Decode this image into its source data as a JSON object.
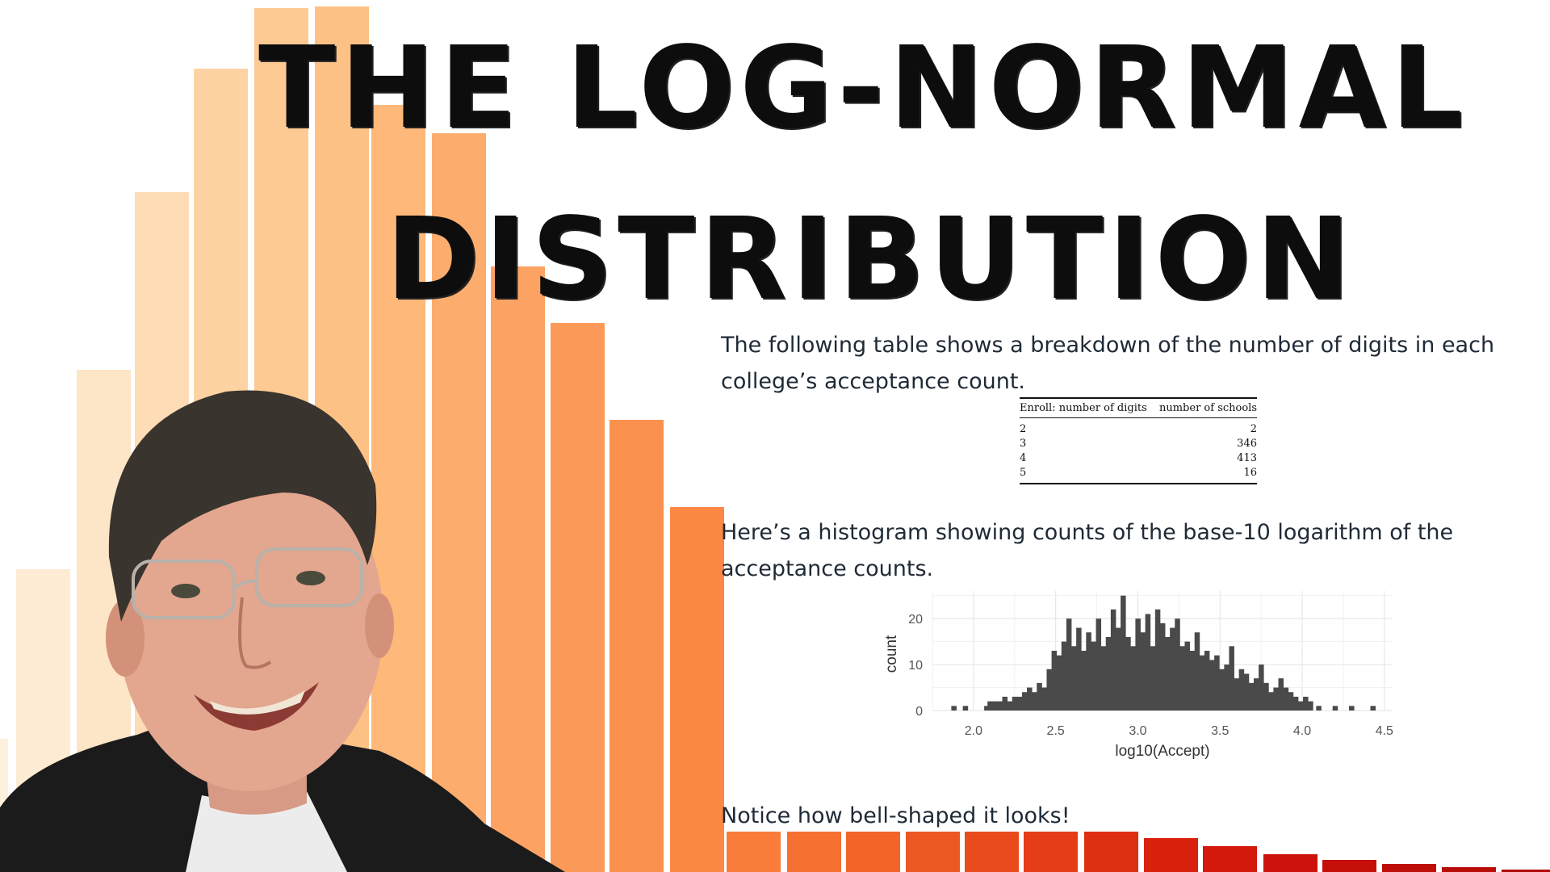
{
  "title": {
    "line1": "THE LOG-NORMAL",
    "line2": "DISTRIBUTION"
  },
  "paragraphs": {
    "intro": "The following table shows a breakdown of the number of digits in each college’s acceptance count.",
    "histogram_intro": "Here’s a histogram showing counts of the base-10 logarithm of the acceptance counts.",
    "closing": "Notice how bell-shaped it looks!"
  },
  "table": {
    "headers": [
      "Enroll: number of digits",
      "number of schools"
    ],
    "rows": [
      [
        "2",
        "2"
      ],
      [
        "3",
        "346"
      ],
      [
        "4",
        "413"
      ],
      [
        "5",
        "16"
      ]
    ]
  },
  "colors": {
    "bar_light": "#fde7c8",
    "bar_mid": "#fdb07a",
    "bar_orange": "#fb8a45",
    "bar_red": "#e02a14",
    "hist_fill": "#4a4a4a",
    "text": "#1f2a36"
  },
  "chart_data": {
    "type": "bar",
    "xlabel": "log10(Accept)",
    "ylabel": "count",
    "xlim": [
      1.75,
      4.55
    ],
    "ylim": [
      0,
      26
    ],
    "xticks": [
      "2.0",
      "2.5",
      "3.0",
      "3.5",
      "4.0",
      "4.5"
    ],
    "yticks": [
      "0",
      "10",
      "20"
    ],
    "grid": true,
    "x": [
      1.88,
      1.95,
      2.08,
      2.1,
      2.13,
      2.16,
      2.19,
      2.22,
      2.25,
      2.28,
      2.31,
      2.34,
      2.37,
      2.4,
      2.43,
      2.46,
      2.49,
      2.52,
      2.55,
      2.58,
      2.61,
      2.64,
      2.67,
      2.7,
      2.73,
      2.76,
      2.79,
      2.82,
      2.85,
      2.88,
      2.91,
      2.94,
      2.97,
      3.0,
      3.03,
      3.06,
      3.09,
      3.12,
      3.15,
      3.18,
      3.21,
      3.24,
      3.27,
      3.3,
      3.33,
      3.36,
      3.39,
      3.42,
      3.45,
      3.48,
      3.51,
      3.54,
      3.57,
      3.6,
      3.63,
      3.66,
      3.69,
      3.72,
      3.75,
      3.78,
      3.81,
      3.84,
      3.87,
      3.9,
      3.93,
      3.96,
      3.99,
      4.02,
      4.05,
      4.1,
      4.2,
      4.3,
      4.43
    ],
    "values": [
      1,
      1,
      1,
      2,
      2,
      2,
      3,
      2,
      3,
      3,
      4,
      5,
      4,
      6,
      5,
      9,
      13,
      12,
      15,
      20,
      14,
      18,
      13,
      17,
      15,
      20,
      14,
      16,
      22,
      18,
      25,
      16,
      14,
      20,
      17,
      21,
      14,
      22,
      19,
      16,
      18,
      20,
      14,
      15,
      13,
      17,
      12,
      13,
      11,
      12,
      9,
      10,
      14,
      7,
      9,
      8,
      6,
      7,
      10,
      6,
      4,
      5,
      7,
      5,
      4,
      3,
      2,
      3,
      2,
      1,
      1,
      1,
      1
    ]
  }
}
